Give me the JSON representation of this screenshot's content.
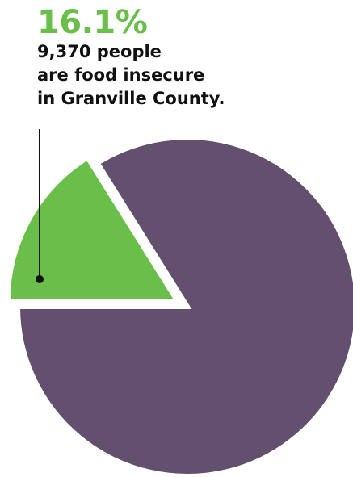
{
  "chart_data": {
    "type": "pie",
    "slices": [
      {
        "label": "food insecure",
        "value": 16.1,
        "color": "#6abf4b"
      },
      {
        "label": "",
        "value": 83.9,
        "color": "#63506e"
      }
    ],
    "exploded_slice": 0,
    "annotation": {
      "percent": "16.1%",
      "lines": [
        "9,370 people",
        "are food insecure",
        "in Granville County."
      ]
    }
  }
}
